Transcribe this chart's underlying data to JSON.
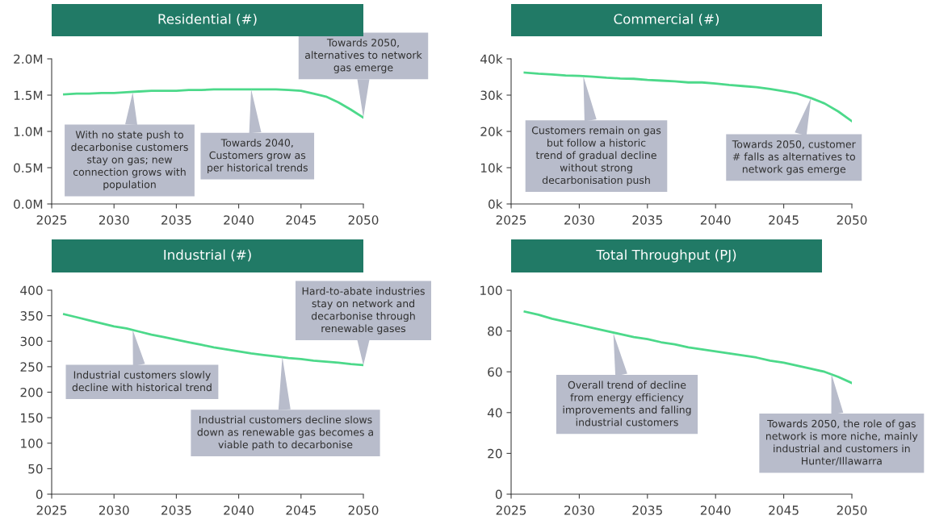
{
  "chart_data": [
    {
      "type": "line",
      "title": "Residential (#)",
      "x": [
        2026,
        2027,
        2028,
        2029,
        2030,
        2031,
        2032,
        2033,
        2034,
        2035,
        2036,
        2037,
        2038,
        2039,
        2040,
        2041,
        2042,
        2043,
        2044,
        2045,
        2046,
        2047,
        2048,
        2049,
        2050
      ],
      "series": [
        {
          "color": "#4cd98a",
          "values": [
            1510000,
            1520000,
            1520000,
            1530000,
            1530000,
            1540000,
            1550000,
            1560000,
            1560000,
            1560000,
            1570000,
            1570000,
            1580000,
            1580000,
            1580000,
            1580000,
            1580000,
            1580000,
            1570000,
            1560000,
            1520000,
            1480000,
            1400000,
            1300000,
            1190000
          ]
        }
      ],
      "xlim": [
        2025,
        2050
      ],
      "xticks": [
        2025,
        2030,
        2035,
        2040,
        2045,
        2050
      ],
      "ylim": [
        0,
        2000000
      ],
      "yticks": [
        {
          "value": 0,
          "label": "0.0M"
        },
        {
          "value": 500000,
          "label": "0.5M"
        },
        {
          "value": 1000000,
          "label": "1.0M"
        },
        {
          "value": 1500000,
          "label": "1.5M"
        },
        {
          "value": 2000000,
          "label": "2.0M"
        }
      ],
      "grid": false,
      "annotations": [
        {
          "text": "With no state push to\ndecarbonise customers\nstay on gas; new\nconnection grows with\npopulation",
          "x": 2031.5,
          "y": 1540000
        },
        {
          "text": "Towards 2040,\nCustomers grow as\nper historical trends",
          "x": 2041,
          "y": 1580000
        },
        {
          "text": "Towards 2050,\nalternatives to network\ngas emerge",
          "x": 2050,
          "y": 1190000
        }
      ]
    },
    {
      "type": "line",
      "title": "Commercial (#)",
      "x": [
        2026,
        2027,
        2028,
        2029,
        2030,
        2031,
        2032,
        2033,
        2034,
        2035,
        2036,
        2037,
        2038,
        2039,
        2040,
        2041,
        2042,
        2043,
        2044,
        2045,
        2046,
        2047,
        2048,
        2049,
        2050
      ],
      "series": [
        {
          "color": "#4cd98a",
          "values": [
            36200,
            35900,
            35700,
            35400,
            35300,
            35100,
            34800,
            34600,
            34500,
            34200,
            34000,
            33800,
            33500,
            33500,
            33200,
            32800,
            32500,
            32200,
            31700,
            31100,
            30400,
            29200,
            27700,
            25500,
            22800
          ]
        }
      ],
      "xlim": [
        2025,
        2050
      ],
      "xticks": [
        2025,
        2030,
        2035,
        2040,
        2045,
        2050
      ],
      "ylim": [
        0,
        40000
      ],
      "yticks": [
        {
          "value": 0,
          "label": "0k"
        },
        {
          "value": 10000,
          "label": "10k"
        },
        {
          "value": 20000,
          "label": "20k"
        },
        {
          "value": 30000,
          "label": "30k"
        },
        {
          "value": 40000,
          "label": "40k"
        }
      ],
      "grid": false,
      "annotations": [
        {
          "text": "Customers remain on gas\nbut follow a historic\ntrend of gradual decline\nwithout strong\ndecarbonisation push",
          "x": 2030.3,
          "y": 35200
        },
        {
          "text": "Towards 2050, customer\n# falls as alternatives to\nnetwork gas emerge",
          "x": 2047,
          "y": 29200
        }
      ]
    },
    {
      "type": "line",
      "title": "Industrial (#)",
      "x": [
        2026,
        2027,
        2028,
        2029,
        2030,
        2031,
        2032,
        2033,
        2034,
        2035,
        2036,
        2037,
        2038,
        2039,
        2040,
        2041,
        2042,
        2043,
        2044,
        2045,
        2046,
        2047,
        2048,
        2049,
        2050
      ],
      "series": [
        {
          "color": "#4cd98a",
          "values": [
            353,
            347,
            341,
            335,
            329,
            325,
            319,
            313,
            308,
            303,
            298,
            293,
            288,
            284,
            280,
            276,
            273,
            270,
            267,
            265,
            262,
            260,
            258,
            255,
            253
          ]
        }
      ],
      "xlim": [
        2025,
        2050
      ],
      "xticks": [
        2025,
        2030,
        2035,
        2040,
        2045,
        2050
      ],
      "ylim": [
        0,
        400
      ],
      "yticks": [
        0,
        50,
        100,
        150,
        200,
        250,
        300,
        350,
        400
      ],
      "grid": false,
      "annotations": [
        {
          "text": "Industrial customers slowly\ndecline with historical trend",
          "x": 2031.5,
          "y": 322
        },
        {
          "text": "Industrial customers decline slows\ndown as renewable gas becomes a\nviable path to decarbonise",
          "x": 2043.5,
          "y": 270
        },
        {
          "text": "Hard-to-abate industries\nstay on network and\ndecarbonise through\nrenewable gases",
          "x": 2050,
          "y": 253
        }
      ]
    },
    {
      "type": "line",
      "title": "Total Throughput (PJ)",
      "x": [
        2026,
        2027,
        2028,
        2029,
        2030,
        2031,
        2032,
        2033,
        2034,
        2035,
        2036,
        2037,
        2038,
        2039,
        2040,
        2041,
        2042,
        2043,
        2044,
        2045,
        2046,
        2047,
        2048,
        2049,
        2050
      ],
      "series": [
        {
          "color": "#4cd98a",
          "values": [
            89.5,
            88,
            86,
            84.5,
            83,
            81.5,
            80,
            78.5,
            77,
            76,
            74.5,
            73.5,
            72,
            71,
            70,
            69,
            68,
            67,
            65.5,
            64.5,
            63,
            61.5,
            60,
            57.5,
            54.5
          ]
        }
      ],
      "xlim": [
        2025,
        2050
      ],
      "xticks": [
        2025,
        2030,
        2035,
        2040,
        2045,
        2050
      ],
      "ylim": [
        0,
        100
      ],
      "yticks": [
        0,
        20,
        40,
        60,
        80,
        100
      ],
      "grid": false,
      "annotations": [
        {
          "text": "Overall trend of decline\nfrom energy efficiency\nimprovements and falling\nindustrial customers",
          "x": 2032.5,
          "y": 79
        },
        {
          "text": "Towards 2050, the role of gas\nnetwork is more niche, mainly\nindustrial and customers in\nHunter/Illawarra",
          "x": 2048.5,
          "y": 59
        }
      ]
    }
  ]
}
